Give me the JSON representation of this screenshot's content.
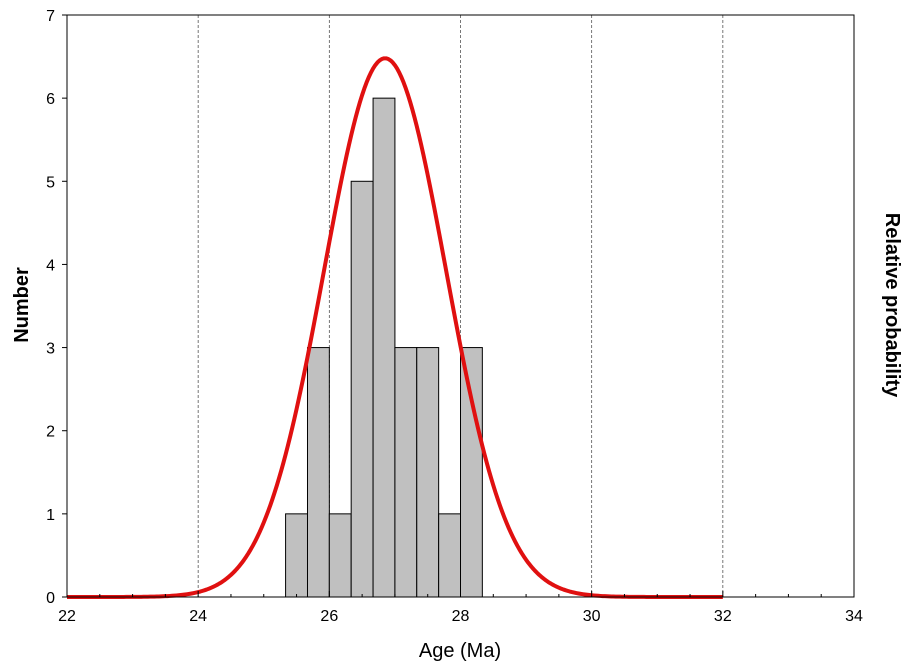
{
  "chart_data": {
    "type": "bar",
    "xlabel": "Age (Ma)",
    "ylabel": "Number",
    "y2label": "Relative probability",
    "xlim": [
      22,
      34
    ],
    "ylim": [
      0,
      7
    ],
    "x_ticks": [
      22,
      24,
      26,
      28,
      30,
      32,
      34
    ],
    "y_ticks": [
      0,
      1,
      2,
      3,
      4,
      5,
      6,
      7
    ],
    "grid": "vertical dashed lines at 24, 26, 28, 30, 32",
    "histogram": {
      "bin_width": 0.333,
      "bins": [
        {
          "from": 25.333,
          "to": 25.667,
          "count": 1
        },
        {
          "from": 25.667,
          "to": 26.0,
          "count": 3
        },
        {
          "from": 26.0,
          "to": 26.333,
          "count": 1
        },
        {
          "from": 26.333,
          "to": 26.667,
          "count": 5
        },
        {
          "from": 26.667,
          "to": 27.0,
          "count": 6
        },
        {
          "from": 27.0,
          "to": 27.333,
          "count": 3
        },
        {
          "from": 27.333,
          "to": 27.667,
          "count": 3
        },
        {
          "from": 27.667,
          "to": 28.0,
          "count": 1
        },
        {
          "from": 28.0,
          "to": 28.333,
          "count": 3
        }
      ],
      "fill": "#c0c0c0",
      "stroke": "#000000"
    },
    "probability_curve": {
      "shape": "gaussian",
      "peak_age": 26.85,
      "peak_value": 6.48,
      "sigma": 0.93,
      "color": "#e01010"
    }
  }
}
